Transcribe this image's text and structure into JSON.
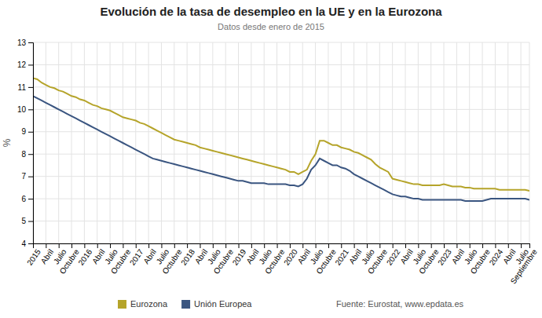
{
  "chart_data": {
    "type": "line",
    "title": "Evolución de la tasa de desempleo en la UE y en la Eurozona",
    "subtitle": "Datos desde enero de 2015",
    "y_label": "%",
    "annotations": [
      "Fuente: Eurostat, www.epdata.es"
    ],
    "categories": [
      "2015",
      null,
      null,
      "Abril",
      null,
      null,
      "Julio",
      null,
      null,
      "Octubre",
      null,
      null,
      "2016",
      null,
      null,
      "Abril",
      null,
      null,
      "Julio",
      null,
      null,
      "Octubre",
      null,
      null,
      "2017",
      null,
      null,
      "Abril",
      null,
      null,
      "Julio",
      null,
      null,
      "Octubre",
      null,
      null,
      "2018",
      null,
      null,
      "Abril",
      null,
      null,
      "Julio",
      null,
      null,
      "Octubre",
      null,
      null,
      "2019",
      null,
      null,
      "Abril",
      null,
      null,
      "Julio",
      null,
      null,
      "Octubre",
      null,
      null,
      "2020",
      null,
      null,
      "Abril",
      null,
      null,
      "Julio",
      null,
      null,
      "Octubre",
      null,
      null,
      "2021",
      null,
      null,
      "Abril",
      null,
      null,
      "Julio",
      null,
      null,
      "Octubre",
      null,
      null,
      "2022",
      null,
      null,
      "Abril",
      null,
      null,
      "Julio",
      null,
      null,
      "Octubre",
      null,
      null,
      "2023",
      null,
      null,
      "Abril",
      null,
      null,
      "Julio",
      null,
      null,
      "Octubre",
      null,
      null,
      "2024",
      null,
      null,
      "Abril",
      null,
      null,
      "Julio",
      null,
      "Septiembre"
    ],
    "series": [
      {
        "name": "Eurozona",
        "color": "#b5a42a",
        "values": [
          11.4,
          11.35,
          11.2,
          11.1,
          11.0,
          10.95,
          10.85,
          10.8,
          10.7,
          10.6,
          10.55,
          10.45,
          10.4,
          10.3,
          10.2,
          10.15,
          10.05,
          10.0,
          9.95,
          9.85,
          9.75,
          9.65,
          9.6,
          9.55,
          9.5,
          9.4,
          9.35,
          9.25,
          9.15,
          9.05,
          8.95,
          8.85,
          8.75,
          8.65,
          8.6,
          8.55,
          8.5,
          8.45,
          8.4,
          8.3,
          8.25,
          8.2,
          8.15,
          8.1,
          8.05,
          8.0,
          7.95,
          7.9,
          7.85,
          7.8,
          7.75,
          7.7,
          7.65,
          7.6,
          7.55,
          7.5,
          7.45,
          7.4,
          7.35,
          7.3,
          7.2,
          7.2,
          7.1,
          7.2,
          7.3,
          7.7,
          8.0,
          8.6,
          8.6,
          8.5,
          8.4,
          8.4,
          8.3,
          8.25,
          8.2,
          8.1,
          8.05,
          7.95,
          7.85,
          7.75,
          7.55,
          7.4,
          7.3,
          7.2,
          6.9,
          6.85,
          6.8,
          6.75,
          6.7,
          6.65,
          6.65,
          6.6,
          6.6,
          6.6,
          6.6,
          6.6,
          6.65,
          6.6,
          6.55,
          6.55,
          6.55,
          6.5,
          6.5,
          6.45,
          6.45,
          6.45,
          6.45,
          6.45,
          6.45,
          6.4,
          6.4,
          6.4,
          6.4,
          6.4,
          6.4,
          6.4,
          6.35
        ]
      },
      {
        "name": "Unión Europea",
        "color": "#3a5580",
        "values": [
          10.6,
          10.5,
          10.4,
          10.3,
          10.2,
          10.1,
          10.0,
          9.9,
          9.8,
          9.7,
          9.6,
          9.5,
          9.4,
          9.3,
          9.2,
          9.1,
          9.0,
          8.9,
          8.8,
          8.7,
          8.6,
          8.5,
          8.4,
          8.3,
          8.2,
          8.1,
          8.0,
          7.9,
          7.8,
          7.75,
          7.7,
          7.65,
          7.6,
          7.55,
          7.5,
          7.45,
          7.4,
          7.35,
          7.3,
          7.25,
          7.2,
          7.15,
          7.1,
          7.05,
          7.0,
          6.95,
          6.9,
          6.85,
          6.8,
          6.8,
          6.75,
          6.7,
          6.7,
          6.7,
          6.7,
          6.65,
          6.65,
          6.65,
          6.65,
          6.65,
          6.6,
          6.6,
          6.55,
          6.65,
          6.9,
          7.3,
          7.5,
          7.8,
          7.7,
          7.6,
          7.5,
          7.5,
          7.4,
          7.35,
          7.25,
          7.1,
          7.0,
          6.9,
          6.8,
          6.7,
          6.6,
          6.5,
          6.4,
          6.3,
          6.2,
          6.15,
          6.1,
          6.1,
          6.05,
          6.0,
          6.0,
          5.95,
          5.95,
          5.95,
          5.95,
          5.95,
          5.95,
          5.95,
          5.95,
          5.95,
          5.95,
          5.9,
          5.9,
          5.9,
          5.9,
          5.9,
          5.95,
          6.0,
          6.0,
          6.0,
          6.0,
          6.0,
          6.0,
          6.0,
          6.0,
          6.0,
          5.95
        ]
      }
    ],
    "ylim": [
      4,
      13
    ],
    "yticks": [
      4,
      5,
      6,
      7,
      8,
      9,
      10,
      11,
      12,
      13
    ],
    "grid": true,
    "legend": "bottom"
  }
}
